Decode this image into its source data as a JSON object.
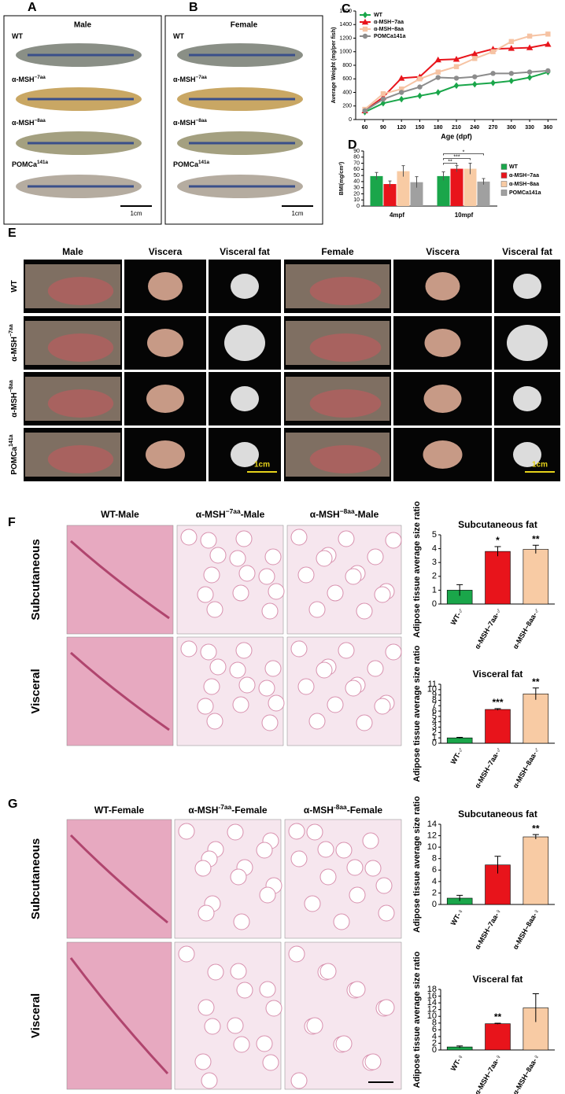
{
  "panel_a": {
    "label": "A",
    "title": "Male",
    "rows": [
      {
        "base": "WT"
      },
      {
        "base": "α-MSH",
        "sup": "−7aa"
      },
      {
        "base": "α-MSH",
        "sup": "−8aa"
      },
      {
        "base": "POMCa",
        "sup": "141a"
      }
    ],
    "scale": "1cm"
  },
  "panel_b": {
    "label": "B",
    "title": "Female",
    "rows": [
      {
        "base": "WT"
      },
      {
        "base": "α-MSH",
        "sup": "−7aa"
      },
      {
        "base": "α-MSH",
        "sup": "−8aa"
      },
      {
        "base": "POMCa",
        "sup": "141a"
      }
    ],
    "scale": "1cm"
  },
  "panel_e": {
    "label": "E",
    "columns": [
      "Male",
      "Viscera",
      "Visceral fat",
      "Female",
      "Viscera",
      "Visceral fat"
    ],
    "rows": [
      {
        "base": "WT"
      },
      {
        "base": "α-MSH",
        "sup": "−7aa"
      },
      {
        "base": "α-MSH",
        "sup": "−8aa"
      },
      {
        "base": "POMCa",
        "sup": "141a"
      }
    ],
    "scale": [
      "1cm",
      "1cm"
    ]
  },
  "panel_f": {
    "label": "F",
    "columns": [
      {
        "base": "WT-Male"
      },
      {
        "base": "α-MSH",
        "sup": "−7aa",
        "tail": "-Male"
      },
      {
        "base": "α-MSH",
        "sup": "−8aa",
        "tail": "-Male"
      }
    ],
    "rows": [
      "Subcutaneous",
      "Visceral"
    ]
  },
  "panel_g": {
    "label": "G",
    "columns": [
      {
        "base": "WT-Female"
      },
      {
        "base": "α-MSH",
        "sup": "-7aa",
        "tail": "-Female"
      },
      {
        "base": "α-MSH",
        "sup": "-8aa",
        "tail": "-Female"
      }
    ],
    "rows": [
      "Subcutaneous",
      "Visceral"
    ]
  },
  "chart_data": [
    {
      "type": "line",
      "panel": "C",
      "x_label": "Age (dpf)",
      "y_label": "Average Weight  (mg/per fish)",
      "x": [
        60,
        90,
        120,
        150,
        180,
        210,
        240,
        270,
        300,
        330,
        360
      ],
      "xlim": [
        45,
        375
      ],
      "xticks": [
        60,
        90,
        120,
        150,
        180,
        210,
        240,
        270,
        300,
        330,
        360
      ],
      "ylim": [
        0,
        1600
      ],
      "yticks": [
        0,
        200,
        400,
        600,
        800,
        1000,
        1200,
        1400,
        1600
      ],
      "series": [
        {
          "name": "WT",
          "color": "#1aa64a",
          "marker": "diamond",
          "values": [
            110,
            240,
            300,
            350,
            400,
            500,
            520,
            540,
            570,
            620,
            700
          ]
        },
        {
          "name": "α-MSH−7aa",
          "color": "#e8141b",
          "marker": "triangle",
          "values": [
            130,
            330,
            610,
            630,
            880,
            890,
            970,
            1040,
            1050,
            1060,
            1110
          ]
        },
        {
          "name": "α-MSH−8aa",
          "color": "#f6c3a3",
          "marker": "square",
          "values": [
            150,
            380,
            450,
            600,
            700,
            780,
            900,
            1000,
            1150,
            1230,
            1260
          ]
        },
        {
          "name": "POMCa141a",
          "color": "#8c8c8c",
          "marker": "circle",
          "values": [
            130,
            300,
            400,
            480,
            620,
            610,
            630,
            680,
            680,
            700,
            720
          ]
        }
      ]
    },
    {
      "type": "grouped_bar",
      "panel": "D",
      "y_label": "BMI(mg/cm²)",
      "categories": [
        "4mpf",
        "10mpf"
      ],
      "ylim": [
        0,
        90
      ],
      "yticks": [
        0,
        10,
        20,
        30,
        40,
        50,
        60,
        70,
        80,
        90
      ],
      "series": [
        {
          "name": "WT",
          "color": "#1aa64a",
          "values": [
            49,
            49
          ],
          "errors": [
            6,
            7
          ]
        },
        {
          "name": "α-MSH−7aa",
          "color": "#e8141b",
          "values": [
            36,
            61
          ],
          "errors": [
            5,
            5
          ],
          "significance": [
            null,
            "**"
          ]
        },
        {
          "name": "α-MSH−8aa",
          "color": "#f8cba4",
          "values": [
            57,
            61
          ],
          "errors": [
            9,
            9
          ],
          "significance": [
            null,
            "***"
          ]
        },
        {
          "name": "POMCa141a",
          "color": "#a0a0a0",
          "values": [
            39,
            40
          ],
          "errors": [
            9,
            5
          ],
          "significance": [
            null,
            "*"
          ]
        }
      ]
    },
    {
      "type": "bar",
      "title": "Subcutaneous fat",
      "y_label": "Adipose tissue average size ratio",
      "categories": [
        "WT-♂",
        "α-MSH−7aa-♂",
        "α-MSH−8aa-♂"
      ],
      "colors": [
        "#1aa64a",
        "#e8141b",
        "#f8cba4"
      ],
      "values": [
        1,
        3.8,
        3.95
      ],
      "errors": [
        0.4,
        0.35,
        0.3
      ],
      "annotations": [
        null,
        "*",
        "**"
      ],
      "ylim": [
        0,
        5
      ],
      "yticks": [
        0,
        1,
        2,
        3,
        4,
        5
      ]
    },
    {
      "type": "bar",
      "title": "Visceral fat",
      "y_label": "Adipose tissue average size ratio",
      "categories": [
        "WT-♂",
        "α-MSH−7aa-♂",
        "α-MSH−8aa-♂"
      ],
      "colors": [
        "#1aa64a",
        "#e8141b",
        "#f8cba4"
      ],
      "values": [
        1,
        6.3,
        9.2
      ],
      "errors": [
        0.1,
        0.15,
        1.1
      ],
      "annotations": [
        null,
        "***",
        "**"
      ],
      "ylim": [
        0,
        11
      ],
      "yticks": [
        0,
        1,
        2,
        3,
        4,
        5,
        6,
        7,
        8,
        9,
        10,
        11
      ]
    },
    {
      "type": "bar",
      "title": "Subcutaneous fat",
      "y_label": "Adipose tissue average size ratio",
      "categories": [
        "WT-♀",
        "α-MSH−7aa-♀",
        "α-MSH−8aa-♀"
      ],
      "colors": [
        "#1aa64a",
        "#e8141b",
        "#f8cba4"
      ],
      "values": [
        1.1,
        6.9,
        11.8
      ],
      "errors": [
        0.5,
        1.5,
        0.4
      ],
      "annotations": [
        null,
        null,
        "**"
      ],
      "ylim": [
        0,
        14
      ],
      "yticks": [
        0,
        2,
        4,
        6,
        8,
        10,
        12,
        14
      ]
    },
    {
      "type": "bar",
      "title": "Visceral fat",
      "y_label": "Adipose tissue average size ratio",
      "categories": [
        "WT-♀",
        "α-MSH−7aa-♀",
        "α-MSH−8aa-♀"
      ],
      "colors": [
        "#1aa64a",
        "#e8141b",
        "#f8cba4"
      ],
      "values": [
        0.9,
        7.8,
        12.5
      ],
      "errors": [
        0.3,
        0.15,
        4.2
      ],
      "annotations": [
        null,
        "**",
        null
      ],
      "ylim": [
        0,
        18
      ],
      "yticks": [
        0,
        2,
        4,
        6,
        8,
        10,
        12,
        14,
        16,
        18
      ]
    }
  ]
}
